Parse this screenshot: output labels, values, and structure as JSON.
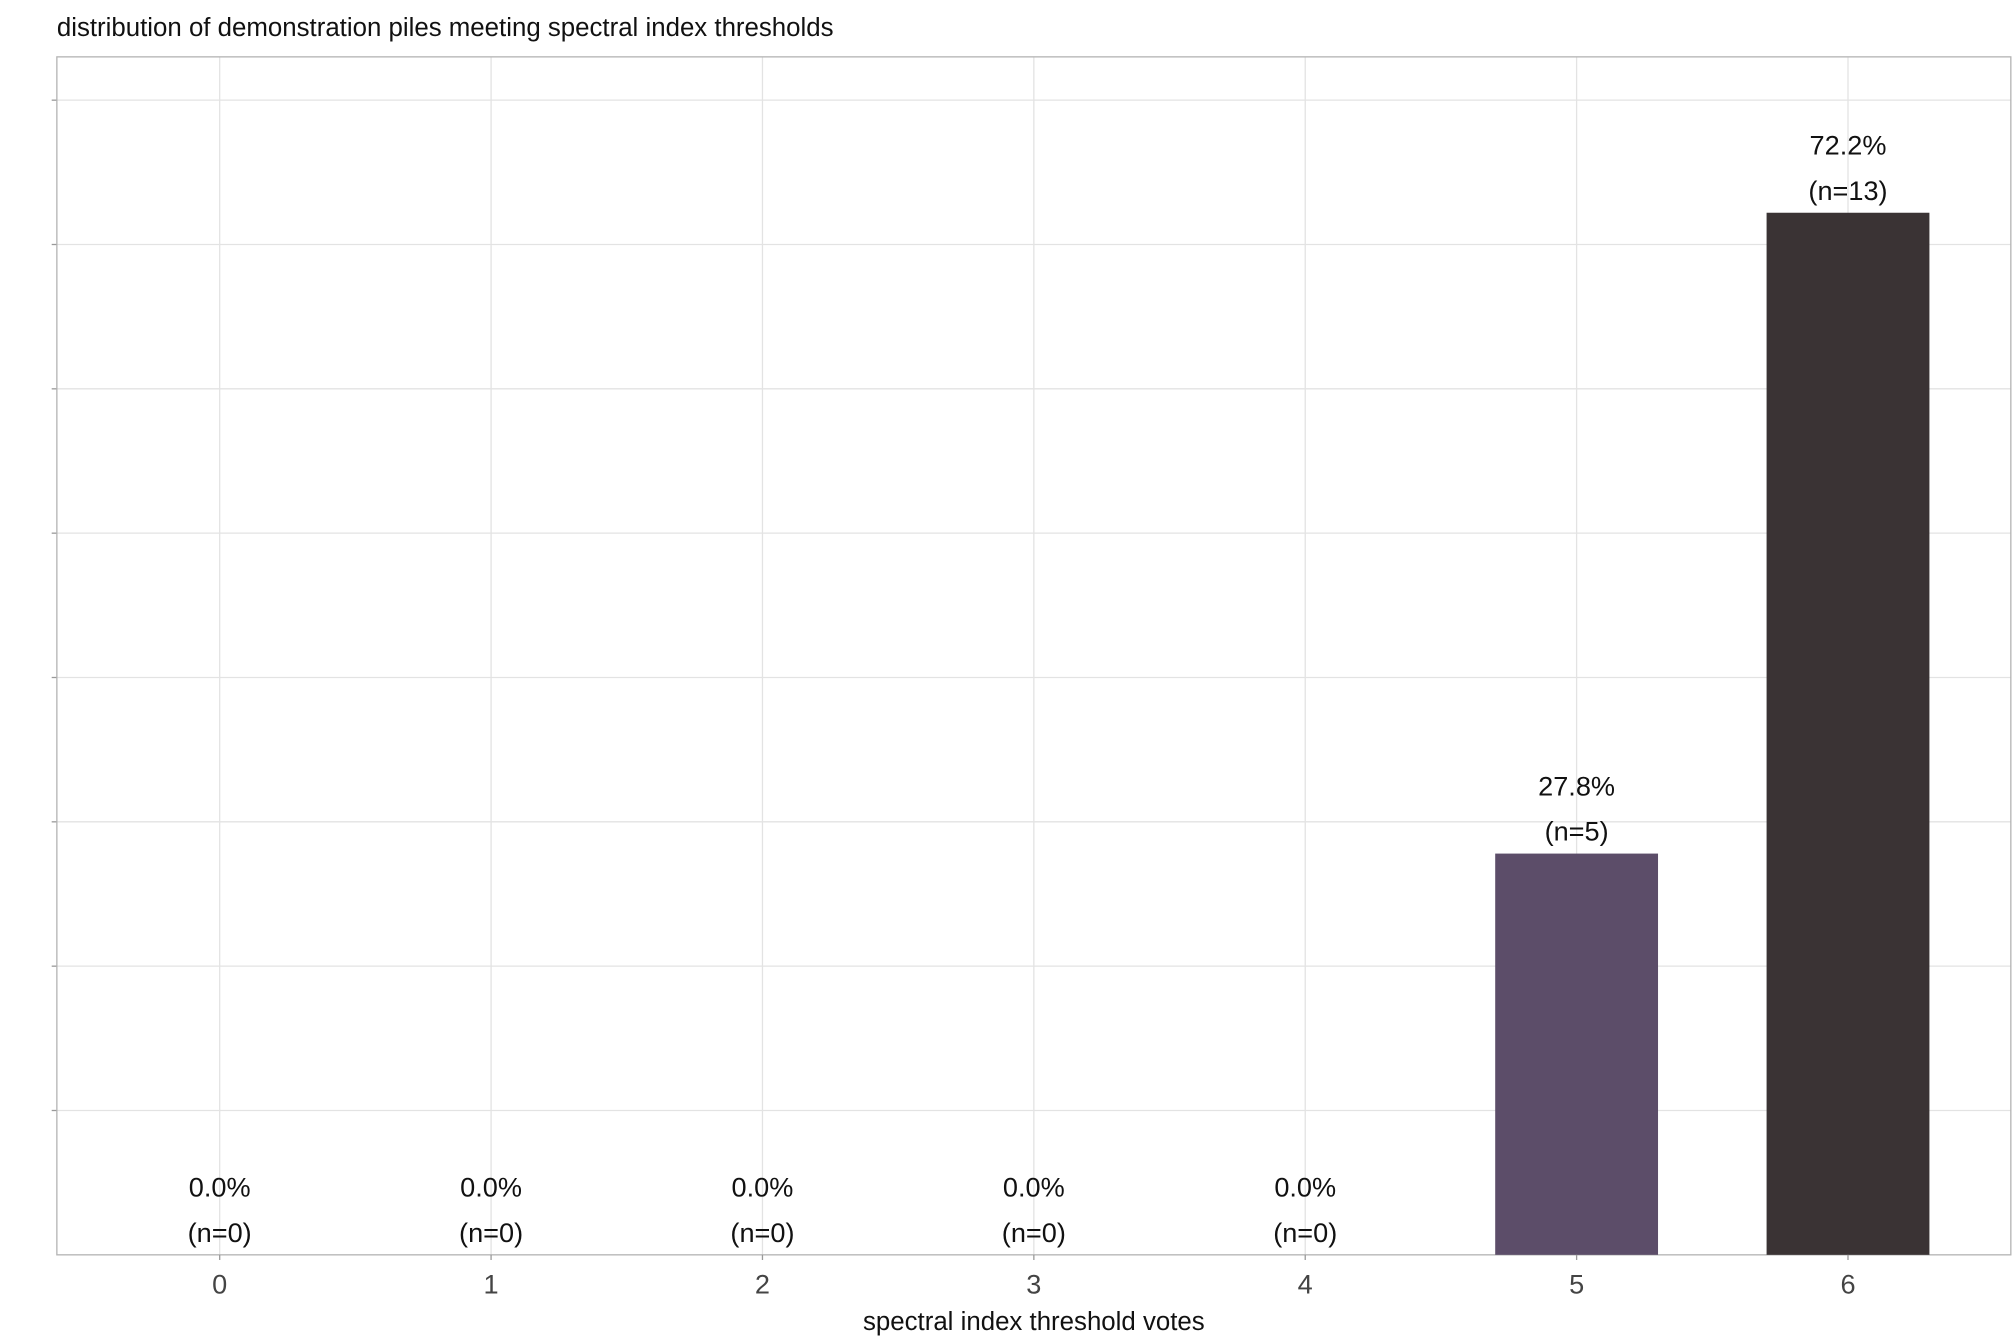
{
  "chart_data": {
    "type": "bar",
    "title": "distribution of demonstration piles meeting spectral index thresholds",
    "xlabel": "spectral index threshold votes",
    "ylabel": "",
    "categories": [
      "0",
      "1",
      "2",
      "3",
      "4",
      "5",
      "6"
    ],
    "values": [
      0.0,
      0.0,
      0.0,
      0.0,
      0.0,
      27.8,
      72.2
    ],
    "counts": [
      0,
      0,
      0,
      0,
      0,
      5,
      13
    ],
    "pct_labels": [
      "0.0%",
      "0.0%",
      "0.0%",
      "0.0%",
      "0.0%",
      "27.8%",
      "72.2%"
    ],
    "n_labels": [
      "(n=0)",
      "(n=0)",
      "(n=0)",
      "(n=0)",
      "(n=0)",
      "(n=5)",
      "(n=13)"
    ],
    "bar_colors": [
      "#5c4d69",
      "#5c4d69",
      "#5c4d69",
      "#5c4d69",
      "#5c4d69",
      "#5c4d69",
      "#3a3334"
    ],
    "ylim": [
      0,
      83
    ],
    "y_gridlines": [
      10,
      20,
      30,
      40,
      50,
      60,
      70,
      80
    ],
    "grid": true,
    "legend": "none"
  }
}
